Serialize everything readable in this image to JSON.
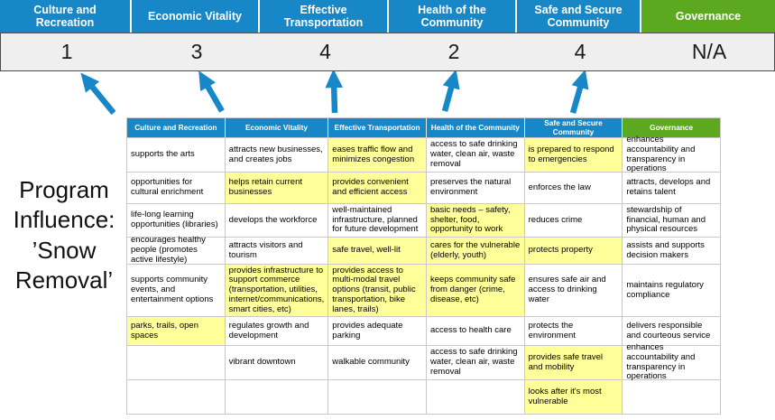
{
  "title_label": "Program Influence: ’Snow Removal’",
  "colors": {
    "blue": "#1787C8",
    "green": "#5CA81E",
    "highlight": "#FFFF99",
    "scorebg": "#EFEFEF"
  },
  "scoreboard": {
    "categories": [
      {
        "label": "Culture and Recreation",
        "score": "1",
        "type": "blue"
      },
      {
        "label": "Economic Vitality",
        "score": "3",
        "type": "blue"
      },
      {
        "label": "Effective Transportation",
        "score": "4",
        "type": "blue"
      },
      {
        "label": "Health of the Community",
        "score": "2",
        "type": "blue"
      },
      {
        "label": "Safe and Secure Community",
        "score": "4",
        "type": "blue"
      },
      {
        "label": "Governance",
        "score": "N/A",
        "type": "green"
      }
    ]
  },
  "matrix": {
    "headers": [
      {
        "label": "Culture and Recreation",
        "type": "blue"
      },
      {
        "label": "Economic Vitality",
        "type": "blue"
      },
      {
        "label": "Effective Transportation",
        "type": "blue"
      },
      {
        "label": "Health of the Community",
        "type": "blue"
      },
      {
        "label": "Safe and Secure Community",
        "type": "blue"
      },
      {
        "label": "Governance",
        "type": "green"
      }
    ],
    "rows": [
      [
        {
          "text": "supports the arts",
          "hl": false
        },
        {
          "text": "attracts new businesses, and creates jobs",
          "hl": false
        },
        {
          "text": "eases traffic flow and minimizes congestion",
          "hl": true
        },
        {
          "text": "access to safe drinking water, clean air, waste removal",
          "hl": false
        },
        {
          "text": "is prepared to respond to emergencies",
          "hl": true
        },
        {
          "text": "enhances accountability and transparency in operations",
          "hl": false
        }
      ],
      [
        {
          "text": "opportunities for cultural enrichment",
          "hl": false
        },
        {
          "text": "helps retain current businesses",
          "hl": true
        },
        {
          "text": "provides convenient and efficient access",
          "hl": true
        },
        {
          "text": "preserves the natural environment",
          "hl": false
        },
        {
          "text": "enforces the law",
          "hl": false
        },
        {
          "text": "attracts, develops and retains talent",
          "hl": false
        }
      ],
      [
        {
          "text": "life-long learning opportunities (libraries)",
          "hl": false
        },
        {
          "text": "develops the workforce",
          "hl": false
        },
        {
          "text": "well-maintained infrastructure, planned for future development",
          "hl": false
        },
        {
          "text": "basic needs – safety, shelter, food, opportunity to work",
          "hl": true
        },
        {
          "text": "reduces crime",
          "hl": false
        },
        {
          "text": "stewardship of financial, human and physical resources",
          "hl": false
        }
      ],
      [
        {
          "text": "encourages healthy people (promotes active lifestyle)",
          "hl": false
        },
        {
          "text": "attracts visitors and tourism",
          "hl": false
        },
        {
          "text": "safe travel, well-lit",
          "hl": true
        },
        {
          "text": "cares for the vulnerable (elderly, youth)",
          "hl": true
        },
        {
          "text": "protects property",
          "hl": true
        },
        {
          "text": "assists and supports decision makers",
          "hl": false
        }
      ],
      [
        {
          "text": "supports community events, and entertainment options",
          "hl": false
        },
        {
          "text": "provides infrastructure to support commerce (transportation, utilities, internet/communications, smart cities, etc)",
          "hl": true
        },
        {
          "text": "provides access to multi-modal travel options (transit, public transportation, bike lanes, trails)",
          "hl": true
        },
        {
          "text": "keeps community safe from danger (crime, disease, etc)",
          "hl": true
        },
        {
          "text": "ensures safe air and access to drinking water",
          "hl": false
        },
        {
          "text": "maintains regulatory compliance",
          "hl": false
        }
      ],
      [
        {
          "text": "parks, trails, open spaces",
          "hl": true
        },
        {
          "text": "regulates growth and development",
          "hl": false
        },
        {
          "text": "provides adequate parking",
          "hl": false
        },
        {
          "text": "access to health care",
          "hl": false
        },
        {
          "text": "protects the environment",
          "hl": false
        },
        {
          "text": "delivers responsible and courteous service",
          "hl": false
        }
      ],
      [
        {
          "text": "",
          "hl": false
        },
        {
          "text": "vibrant downtown",
          "hl": false
        },
        {
          "text": "walkable community",
          "hl": false
        },
        {
          "text": "access to safe drinking water, clean air, waste removal",
          "hl": false
        },
        {
          "text": "provides safe travel and mobility",
          "hl": true
        },
        {
          "text": "enhances accountability and transparency in operations",
          "hl": false
        }
      ],
      [
        {
          "text": "",
          "hl": false
        },
        {
          "text": "",
          "hl": false
        },
        {
          "text": "",
          "hl": false
        },
        {
          "text": "",
          "hl": false
        },
        {
          "text": "looks after it's most vulnerable",
          "hl": true
        },
        {
          "text": "",
          "hl": false
        }
      ]
    ]
  }
}
